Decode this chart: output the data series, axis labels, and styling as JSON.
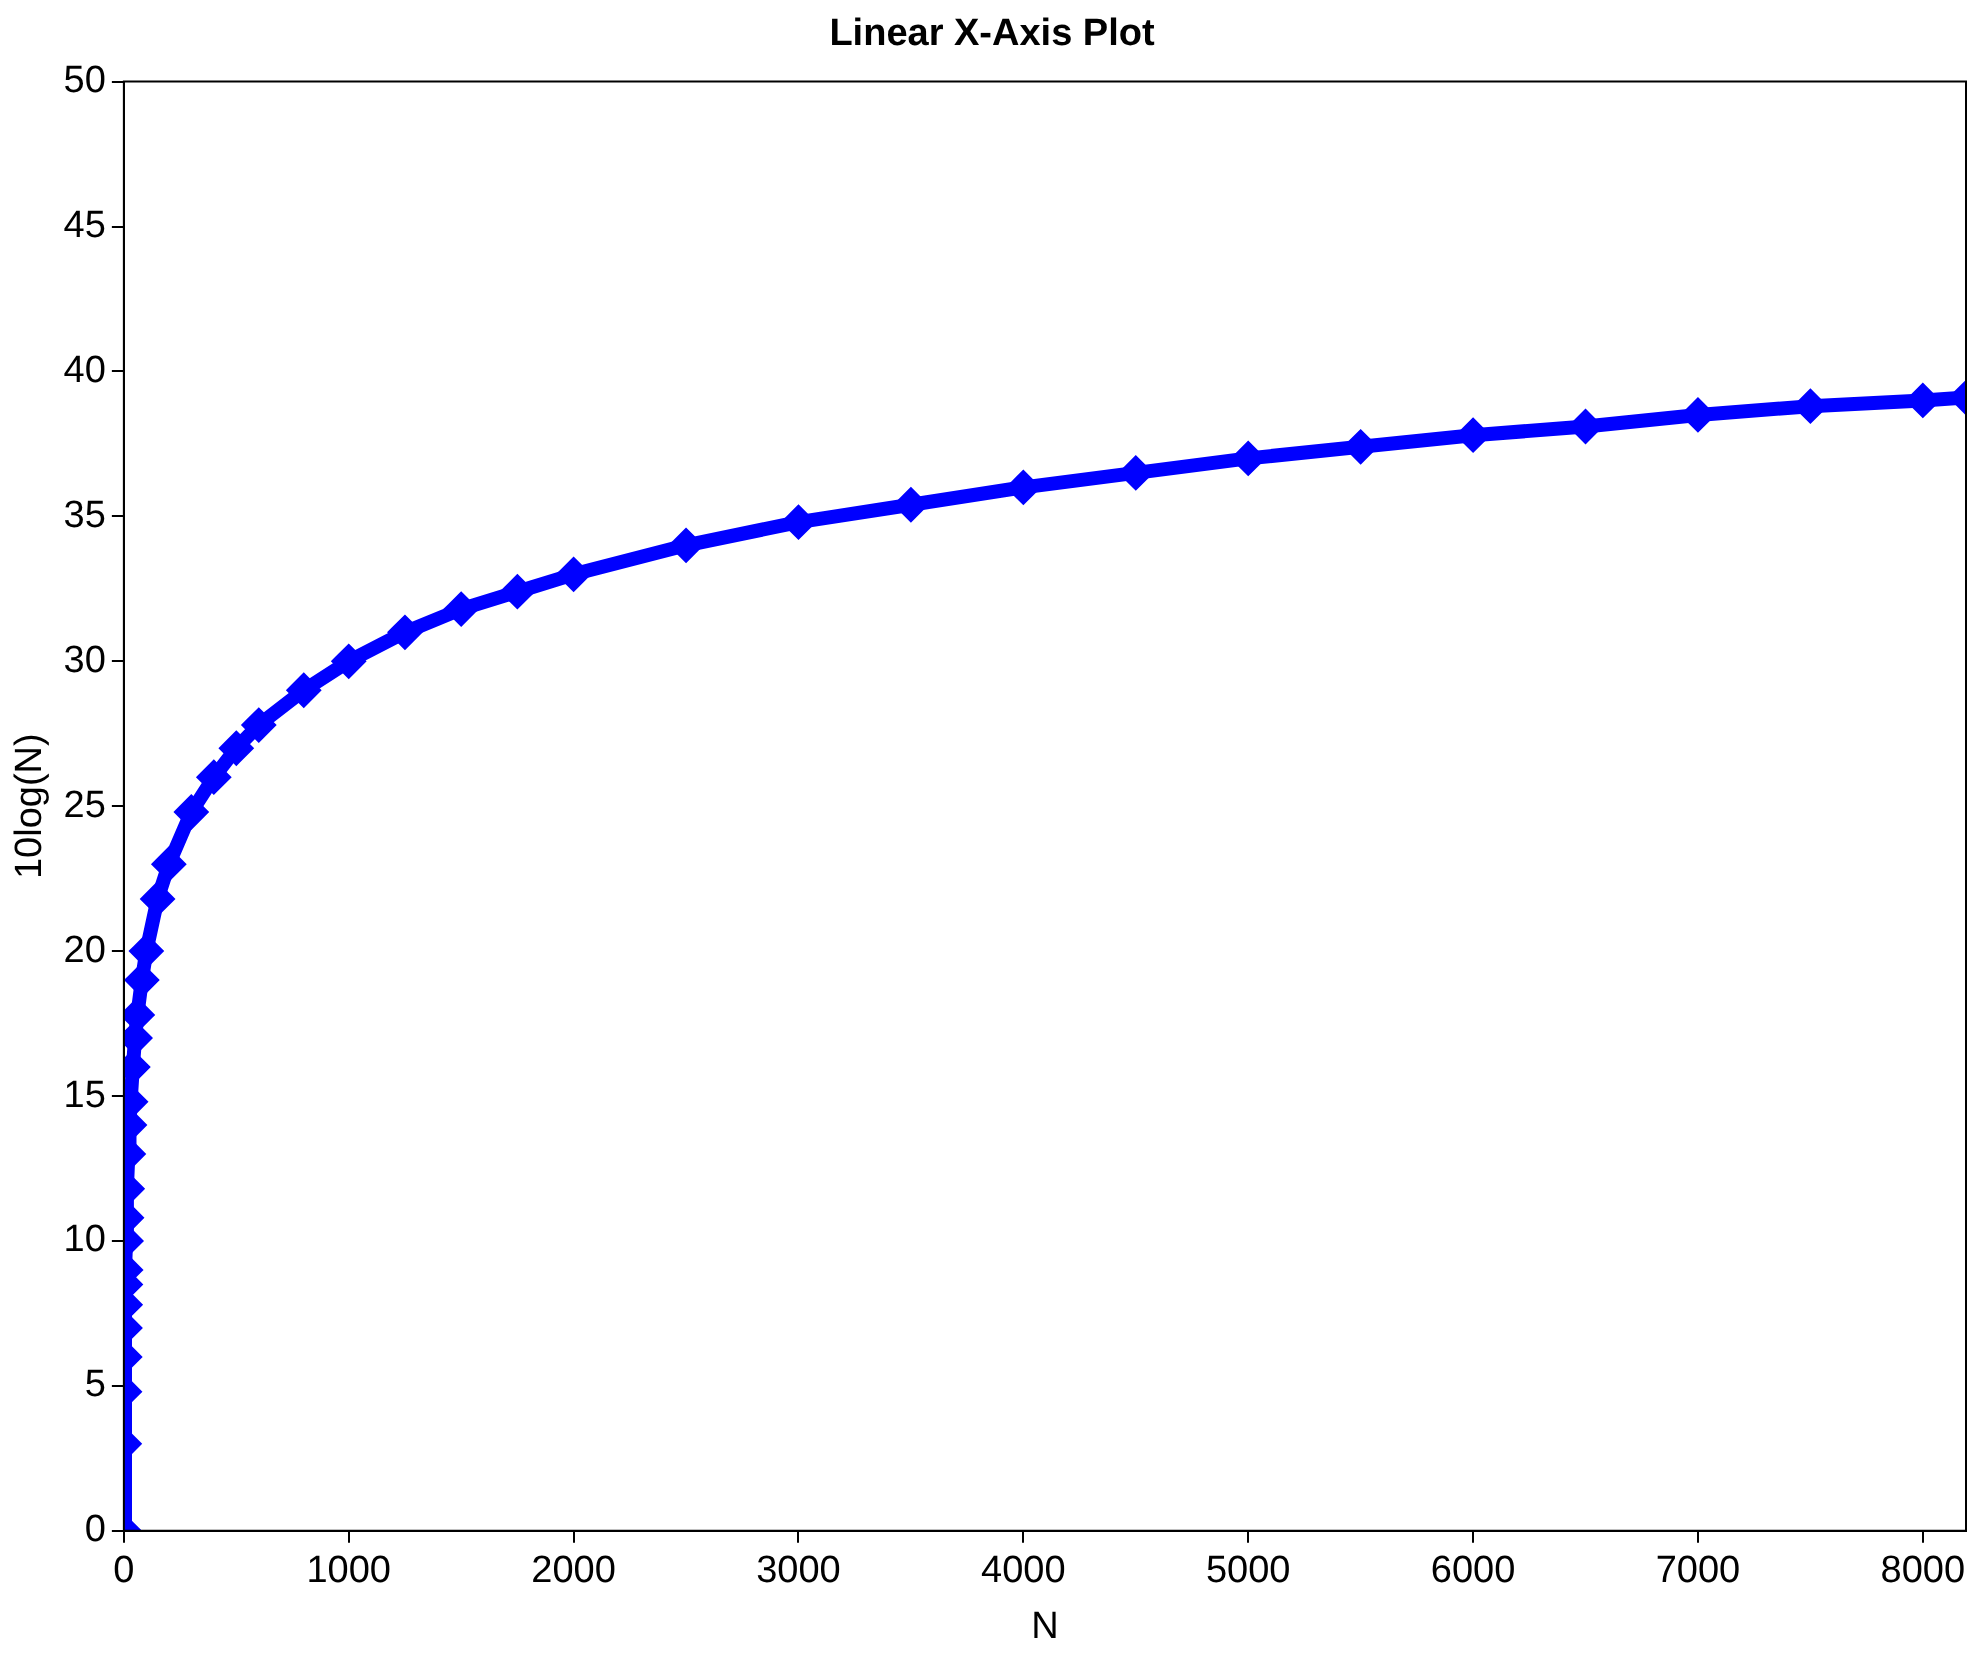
{
  "chart_data": {
    "type": "line",
    "title": "Linear X-Axis Plot",
    "xlabel": "N",
    "ylabel": "10log(N)",
    "x": [
      1,
      2,
      3,
      4,
      5,
      6,
      7,
      8,
      10,
      12,
      15,
      20,
      25,
      30,
      40,
      50,
      60,
      80,
      100,
      150,
      200,
      300,
      400,
      500,
      600,
      800,
      1000,
      1250,
      1500,
      1750,
      2000,
      2500,
      3000,
      3500,
      4000,
      4500,
      5000,
      5500,
      6000,
      6500,
      7000,
      7500,
      8000,
      8192
    ],
    "values": [
      0,
      3.0,
      4.8,
      6.0,
      7.0,
      7.8,
      8.5,
      9.0,
      10.0,
      10.8,
      11.8,
      13.0,
      14.0,
      14.8,
      16.0,
      17.0,
      17.8,
      19.0,
      20.0,
      21.8,
      23.0,
      24.8,
      26.0,
      27.0,
      27.8,
      29.0,
      30.0,
      31.0,
      31.8,
      32.4,
      33.0,
      34.0,
      34.8,
      35.4,
      36.0,
      36.5,
      37.0,
      37.4,
      37.8,
      38.1,
      38.5,
      38.8,
      39.0,
      39.1
    ],
    "color": "#0000ff",
    "marker": "diamond",
    "line_style": "solid",
    "grid": false,
    "xlim": [
      0,
      8192
    ],
    "xticks": [
      0,
      1000,
      2000,
      3000,
      4000,
      5000,
      6000,
      7000,
      8000
    ],
    "ylim": [
      0,
      50
    ],
    "yticks": [
      0,
      5,
      10,
      15,
      20,
      25,
      30,
      35,
      40,
      45,
      50
    ]
  }
}
